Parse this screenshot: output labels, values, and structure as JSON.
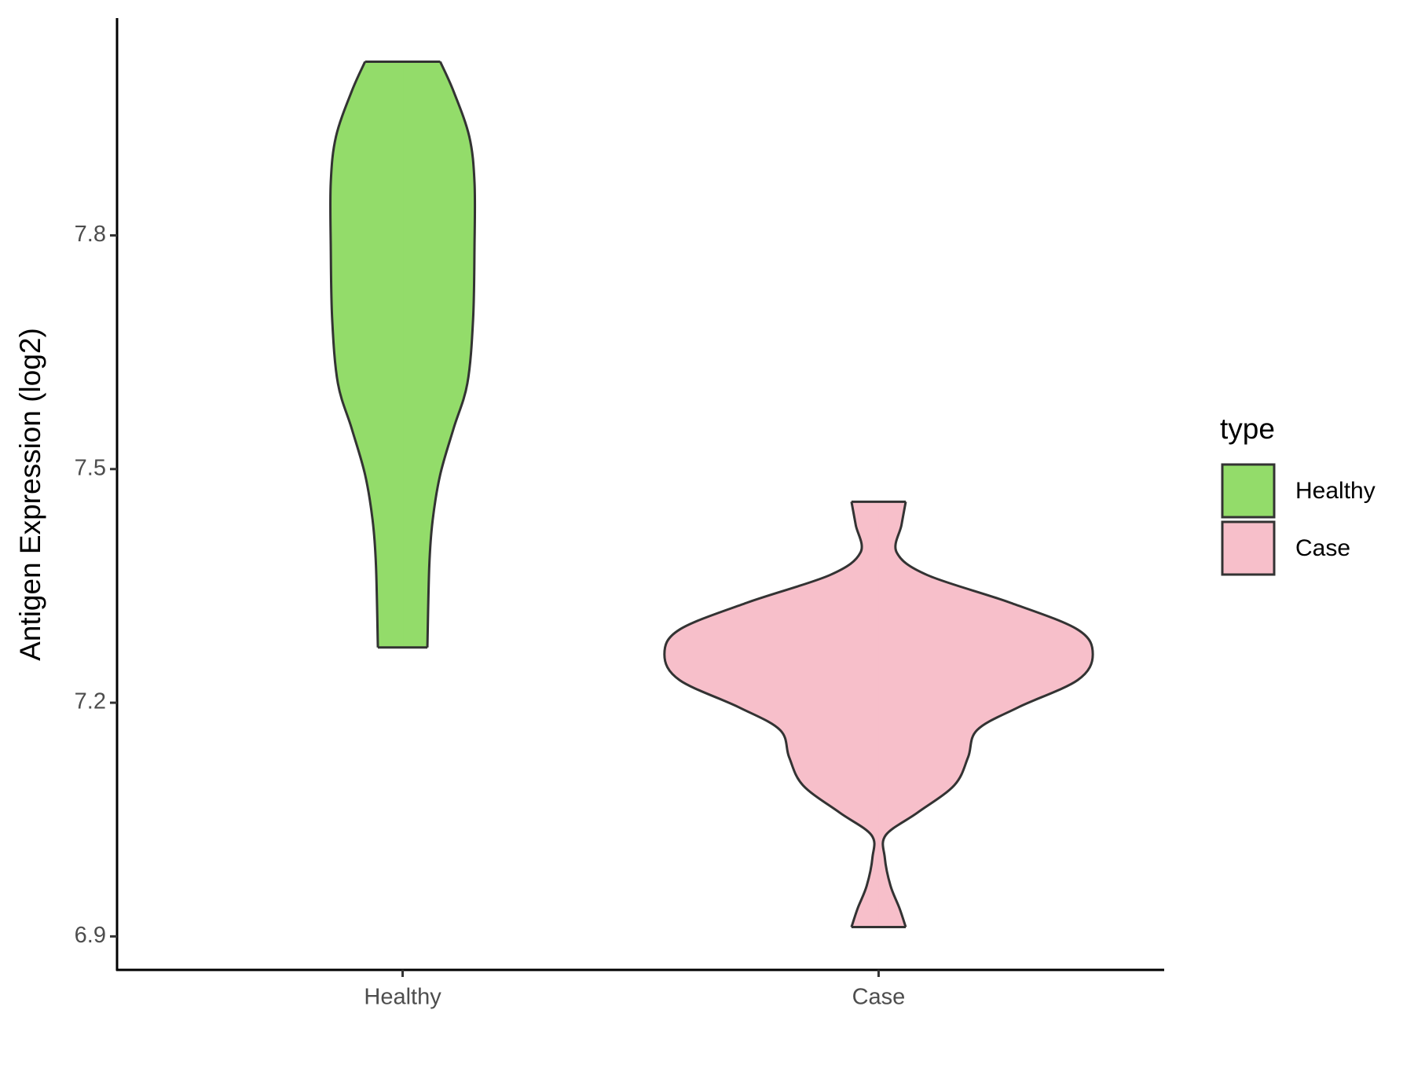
{
  "chart_data": {
    "type": "violin",
    "y_label": "Antigen Expression (log2)",
    "categories": [
      "Healthy",
      "Case"
    ],
    "legend_title": "type",
    "series": [
      {
        "name": "Healthy",
        "color": "#93dc6a",
        "y": [
          8.023,
          7.985,
          7.927,
          7.868,
          7.786,
          7.692,
          7.61,
          7.552,
          7.493,
          7.434,
          7.376,
          7.271
        ],
        "density": [
          0.079,
          0.107,
          0.14,
          0.151,
          0.151,
          0.148,
          0.136,
          0.107,
          0.079,
          0.063,
          0.056,
          0.052
        ]
      },
      {
        "name": "Case",
        "color": "#f7bfca",
        "y": [
          7.458,
          7.428,
          7.393,
          7.364,
          7.329,
          7.294,
          7.262,
          7.229,
          7.194,
          7.165,
          7.13,
          7.094,
          7.059,
          7.03,
          7.001,
          6.965,
          6.936,
          6.912
        ],
        "density": [
          0.057,
          0.048,
          0.038,
          0.102,
          0.274,
          0.418,
          0.45,
          0.418,
          0.293,
          0.207,
          0.188,
          0.159,
          0.082,
          0.015,
          0.013,
          0.025,
          0.044,
          0.057
        ]
      }
    ],
    "ylim": [
      6.857,
      8.079
    ],
    "yticks": [
      6.9,
      7.2,
      7.5,
      7.8
    ]
  }
}
